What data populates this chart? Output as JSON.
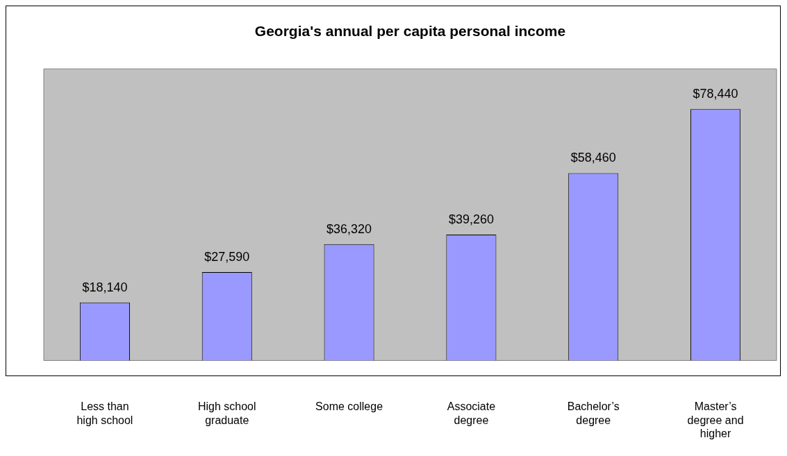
{
  "chart_data": {
    "type": "bar",
    "title": "Georgia's annual per capita personal income",
    "categories": [
      "Less than high school",
      "High school graduate",
      "Some college",
      "Associate degree",
      "Bachelor’s degree",
      "Master’s degree and higher"
    ],
    "values": [
      18140,
      27590,
      36320,
      39260,
      58460,
      78440
    ],
    "value_labels": [
      "$18,140",
      "$27,590",
      "$36,320",
      "$39,260",
      "$58,460",
      "$78,440"
    ],
    "color": "#9999ff",
    "ylim": [
      0,
      91000
    ],
    "tick_labels": "x"
  }
}
